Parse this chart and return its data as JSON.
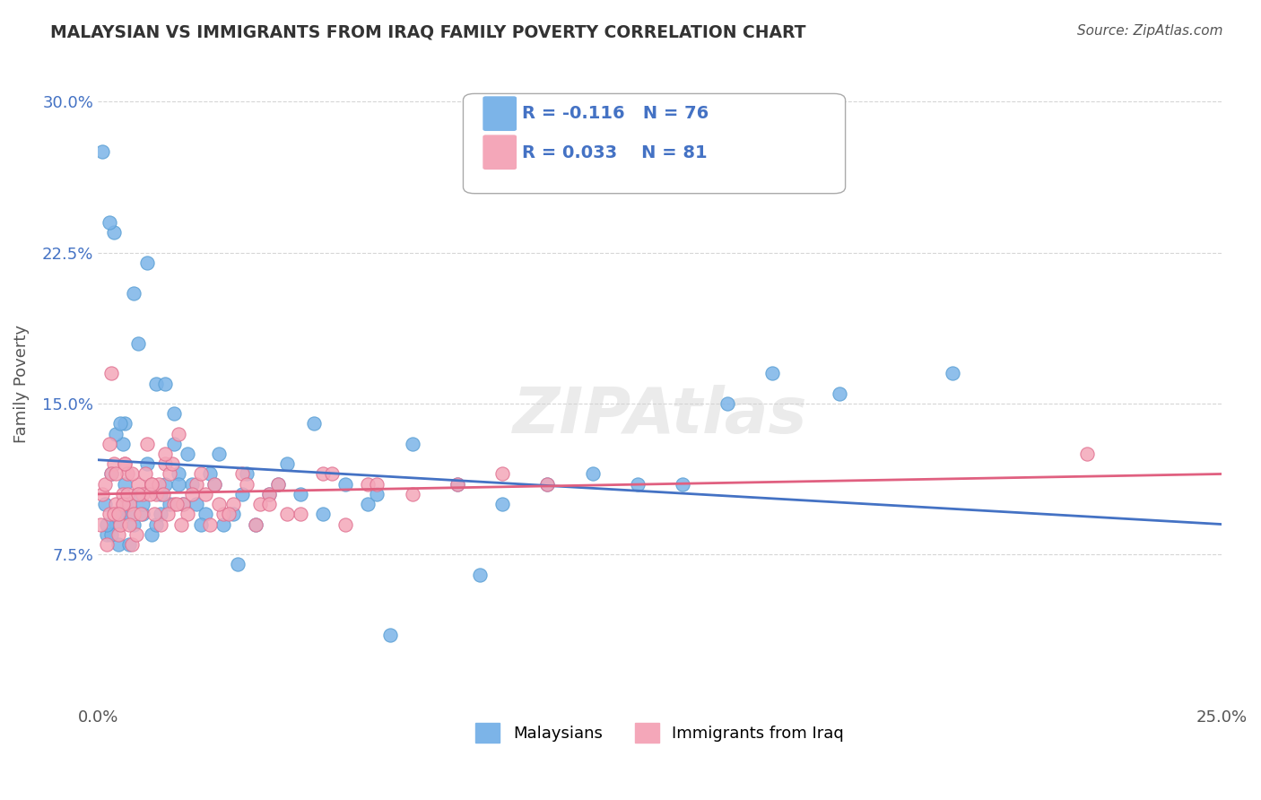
{
  "title": "MALAYSIAN VS IMMIGRANTS FROM IRAQ FAMILY POVERTY CORRELATION CHART",
  "source": "Source: ZipAtlas.com",
  "xlim": [
    0.0,
    25.0
  ],
  "ylim": [
    0.0,
    32.0
  ],
  "watermark": "ZIPAtlas",
  "series": [
    {
      "name": "Malaysians",
      "R": -0.116,
      "N": 76,
      "color": "#7cb4e8",
      "edge_color": "#5a9fd4",
      "x": [
        0.1,
        0.15,
        0.2,
        0.3,
        0.4,
        0.45,
        0.5,
        0.55,
        0.6,
        0.65,
        0.7,
        0.8,
        0.9,
        1.0,
        1.1,
        1.2,
        1.3,
        1.4,
        1.5,
        1.6,
        1.7,
        1.8,
        1.9,
        2.0,
        2.2,
        2.4,
        2.6,
        2.8,
        3.0,
        3.2,
        3.5,
        4.0,
        4.5,
        5.0,
        5.5,
        6.0,
        7.0,
        8.0,
        9.0,
        10.0,
        11.0,
        12.0,
        13.0,
        14.0,
        15.0,
        16.5,
        4.2,
        3.8,
        0.8,
        1.1,
        0.6,
        0.9,
        1.3,
        1.7,
        2.1,
        0.4,
        0.7,
        1.5,
        0.3,
        2.3,
        3.1,
        0.5,
        1.8,
        2.7,
        4.8,
        6.5,
        8.5,
        0.2,
        1.0,
        1.4,
        2.5,
        3.3,
        0.35,
        0.25,
        19.0,
        6.2
      ],
      "y": [
        27.5,
        10.0,
        8.5,
        11.5,
        9.0,
        8.0,
        9.5,
        13.0,
        11.0,
        10.0,
        9.5,
        9.0,
        10.5,
        9.5,
        12.0,
        8.5,
        9.0,
        10.5,
        11.0,
        10.0,
        13.0,
        11.5,
        10.0,
        12.5,
        10.0,
        9.5,
        11.0,
        9.0,
        9.5,
        10.5,
        9.0,
        11.0,
        10.5,
        9.5,
        11.0,
        10.0,
        13.0,
        11.0,
        10.0,
        11.0,
        11.5,
        11.0,
        11.0,
        15.0,
        16.5,
        15.5,
        12.0,
        10.5,
        20.5,
        22.0,
        14.0,
        18.0,
        16.0,
        14.5,
        11.0,
        13.5,
        8.0,
        16.0,
        8.5,
        9.0,
        7.0,
        14.0,
        11.0,
        12.5,
        14.0,
        3.5,
        6.5,
        9.0,
        10.0,
        9.5,
        11.5,
        11.5,
        23.5,
        24.0,
        16.5,
        10.5
      ]
    },
    {
      "name": "Immigrants from Iraq",
      "R": 0.033,
      "N": 81,
      "color": "#f4a7b9",
      "edge_color": "#e07090",
      "x": [
        0.05,
        0.1,
        0.15,
        0.2,
        0.25,
        0.3,
        0.35,
        0.4,
        0.45,
        0.5,
        0.55,
        0.6,
        0.65,
        0.7,
        0.75,
        0.8,
        0.9,
        1.0,
        1.1,
        1.2,
        1.3,
        1.4,
        1.5,
        1.6,
        1.7,
        1.8,
        1.9,
        2.0,
        2.2,
        2.4,
        2.6,
        2.8,
        3.0,
        3.2,
        3.5,
        3.8,
        4.0,
        4.5,
        5.0,
        5.5,
        6.0,
        7.0,
        8.0,
        9.0,
        10.0,
        0.35,
        0.55,
        0.75,
        0.95,
        1.15,
        1.35,
        1.55,
        1.75,
        0.25,
        0.45,
        0.65,
        0.85,
        1.05,
        1.25,
        1.45,
        1.65,
        1.85,
        2.1,
        2.3,
        2.5,
        2.7,
        2.9,
        3.3,
        3.6,
        4.2,
        5.2,
        6.2,
        0.3,
        0.6,
        0.9,
        1.2,
        1.5,
        0.7,
        0.4,
        22.0,
        3.8
      ],
      "y": [
        9.0,
        10.5,
        11.0,
        8.0,
        9.5,
        16.5,
        12.0,
        10.0,
        8.5,
        9.0,
        10.5,
        12.0,
        11.5,
        10.0,
        8.0,
        9.5,
        11.0,
        10.5,
        13.0,
        11.0,
        10.5,
        9.0,
        12.0,
        11.5,
        10.0,
        13.5,
        10.0,
        9.5,
        11.0,
        10.5,
        11.0,
        9.5,
        10.0,
        11.5,
        9.0,
        10.5,
        11.0,
        9.5,
        11.5,
        9.0,
        11.0,
        10.5,
        11.0,
        11.5,
        11.0,
        9.5,
        10.0,
        11.5,
        9.5,
        10.5,
        11.0,
        9.5,
        10.0,
        13.0,
        9.5,
        10.5,
        8.5,
        11.5,
        9.5,
        10.5,
        12.0,
        9.0,
        10.5,
        11.5,
        9.0,
        10.0,
        9.5,
        11.0,
        10.0,
        9.5,
        11.5,
        11.0,
        11.5,
        12.0,
        10.5,
        11.0,
        12.5,
        9.0,
        11.5,
        12.5,
        10.0
      ]
    }
  ],
  "trend_lines": [
    {
      "color": "#4472c4",
      "x_start": 0.0,
      "x_end": 25.0,
      "y_start": 12.2,
      "y_end": 9.0
    },
    {
      "color": "#e06080",
      "x_start": 0.0,
      "x_end": 25.0,
      "y_start": 10.5,
      "y_end": 11.5
    }
  ],
  "legend": {
    "R_blue": "-0.116",
    "N_blue": "76",
    "R_pink": "0.033",
    "N_pink": "81",
    "blue_color": "#7cb4e8",
    "pink_color": "#f4a7b9",
    "text_color_blue": "#4472c4",
    "text_color_pink": "#e06080"
  },
  "grid_color": "#cccccc",
  "background_color": "#ffffff",
  "plot_bg_color": "#ffffff",
  "ylabel": "Family Poverty"
}
